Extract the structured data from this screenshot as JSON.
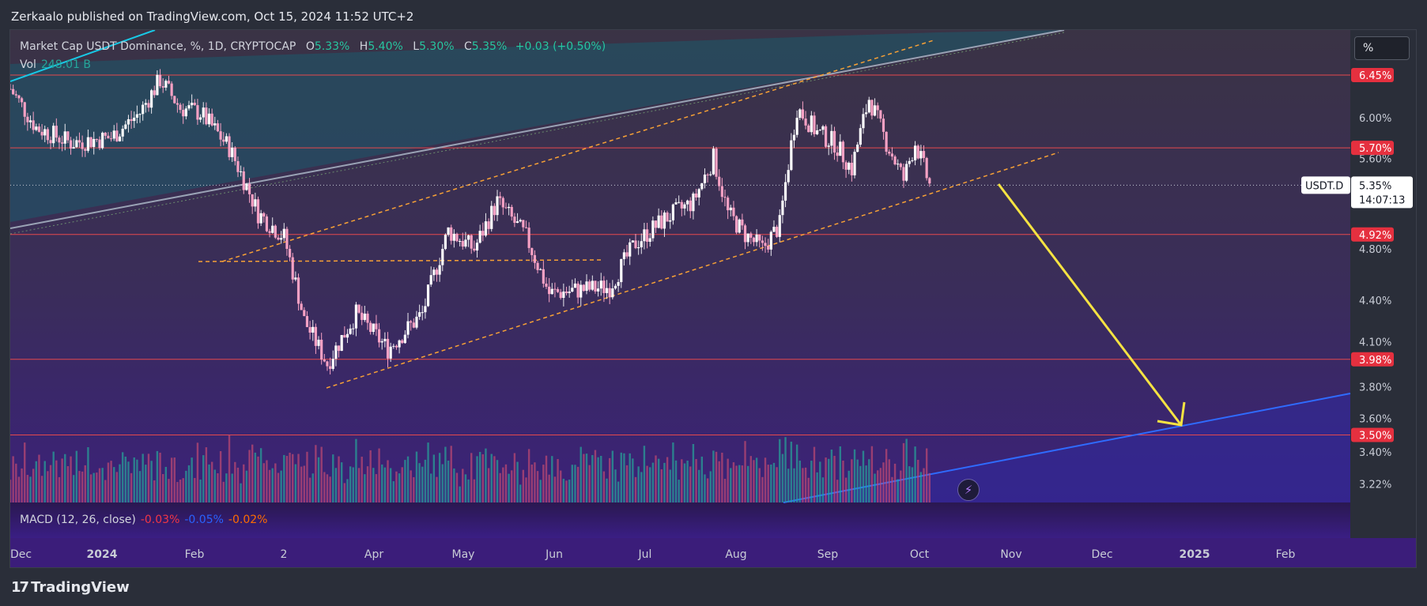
{
  "publisher": "Zerkaalo published on TradingView.com, Oct 15, 2024 11:52 UTC+2",
  "legend": {
    "title": "Market Cap USDT Dominance, %, 1D, CRYPTOCAP",
    "open_label": "O",
    "open": "5.33%",
    "high_label": "H",
    "high": "5.40%",
    "low_label": "L",
    "low": "5.30%",
    "close_label": "C",
    "close": "5.35%",
    "change": "+0.03 (+0.50%)"
  },
  "volume": {
    "label": "Vol",
    "value": "248.01 B"
  },
  "macd": {
    "label": "MACD (12, 26, close)",
    "macd": "-0.03%",
    "signal": "-0.05%",
    "histogram": "-0.02%"
  },
  "scale_button": "%",
  "symbol_tag": {
    "symbol": "USDT.D",
    "price": "5.35%",
    "countdown": "14:07:13"
  },
  "footer": {
    "brand": "TradingView",
    "logo_mark": "17"
  },
  "colors": {
    "up": "#26a69a",
    "down": "#f7a1c4",
    "level_line": "#e5484d",
    "channel": "#f7a136",
    "arrow": "#f5e342",
    "support": "#2f6bff",
    "wedge_top": "#18c9e6"
  },
  "chart_data": {
    "type": "candlestick",
    "symbol": "USDT.D",
    "y_axis": {
      "scale": "log",
      "range": [
        3.1,
        7.0
      ],
      "ticks": [
        "6.00%",
        "5.60%",
        "4.80%",
        "4.40%",
        "4.10%",
        "3.80%",
        "3.60%",
        "3.40%",
        "3.22%"
      ]
    },
    "x_axis": {
      "range": [
        "2023-12-01",
        "2025-03-10"
      ],
      "ticks": [
        "Dec",
        "2024",
        "Feb",
        "2",
        "Apr",
        "May",
        "Jun",
        "Jul",
        "Aug",
        "Sep",
        "Oct",
        "Nov",
        "Dec",
        "2025",
        "Feb"
      ]
    },
    "horizontal_levels": [
      {
        "value": 6.45,
        "label": "6.45%"
      },
      {
        "value": 5.7,
        "label": "5.70%"
      },
      {
        "value": 4.92,
        "label": "4.92%"
      },
      {
        "value": 3.98,
        "label": "3.98%"
      },
      {
        "value": 3.5,
        "label": "3.50%"
      }
    ],
    "last_price": 5.35,
    "close_path": [
      [
        "2023-12-01",
        6.3
      ],
      [
        "2023-12-10",
        5.9
      ],
      [
        "2023-12-22",
        5.75
      ],
      [
        "2024-01-05",
        5.8
      ],
      [
        "2024-01-15",
        6.05
      ],
      [
        "2024-01-22",
        6.4
      ],
      [
        "2024-01-29",
        6.1
      ],
      [
        "2024-02-05",
        6.05
      ],
      [
        "2024-02-15",
        5.7
      ],
      [
        "2024-02-25",
        5.1
      ],
      [
        "2024-03-05",
        4.9
      ],
      [
        "2024-03-12",
        4.25
      ],
      [
        "2024-03-20",
        3.95
      ],
      [
        "2024-03-30",
        4.3
      ],
      [
        "2024-04-10",
        4.05
      ],
      [
        "2024-04-22",
        4.3
      ],
      [
        "2024-05-01",
        4.95
      ],
      [
        "2024-05-10",
        4.8
      ],
      [
        "2024-05-18",
        5.2
      ],
      [
        "2024-05-28",
        4.9
      ],
      [
        "2024-06-05",
        4.45
      ],
      [
        "2024-06-16",
        4.48
      ],
      [
        "2024-06-26",
        4.5
      ],
      [
        "2024-07-05",
        4.85
      ],
      [
        "2024-07-15",
        5.05
      ],
      [
        "2024-07-25",
        5.2
      ],
      [
        "2024-08-01",
        5.6
      ],
      [
        "2024-08-06",
        5.1
      ],
      [
        "2024-08-12",
        4.92
      ],
      [
        "2024-08-18",
        4.8
      ],
      [
        "2024-08-24",
        5.0
      ],
      [
        "2024-08-30",
        6.1
      ],
      [
        "2024-09-06",
        5.85
      ],
      [
        "2024-09-12",
        5.75
      ],
      [
        "2024-09-18",
        5.5
      ],
      [
        "2024-09-24",
        6.2
      ],
      [
        "2024-09-30",
        5.75
      ],
      [
        "2024-10-06",
        5.4
      ],
      [
        "2024-10-10",
        5.75
      ],
      [
        "2024-10-15",
        5.35
      ]
    ],
    "volume_series": "histogram below price, peaks around early March and early August"
  }
}
